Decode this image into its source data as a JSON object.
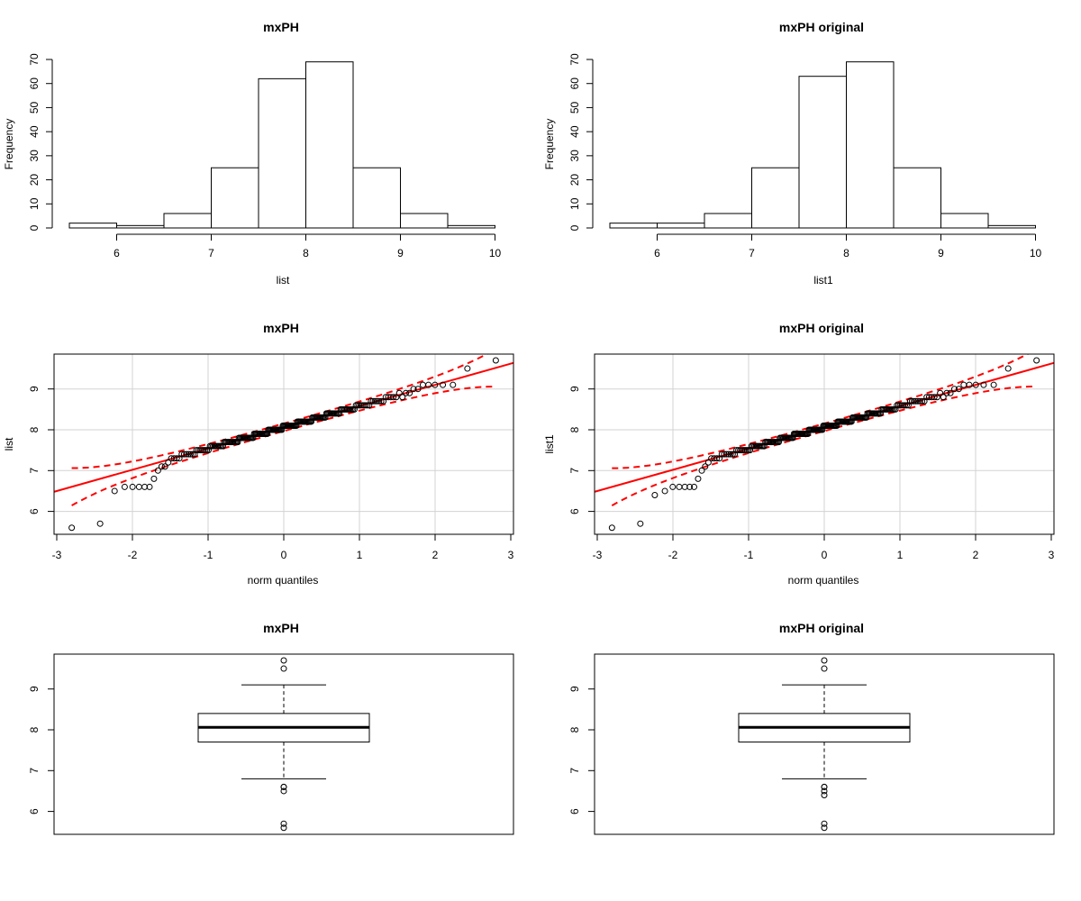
{
  "colors": {
    "fit_line": "#ff0000",
    "grid": "#d3d3d3",
    "axis": "#000000"
  },
  "chart_data": [
    {
      "type": "bar",
      "subtype": "histogram",
      "title": "mxPH",
      "xlabel": "list",
      "ylabel": "Frequency",
      "bin_edges": [
        5.5,
        6,
        6.5,
        7,
        7.5,
        8,
        8.5,
        9,
        9.5,
        10
      ],
      "values": [
        2,
        1,
        6,
        25,
        62,
        69,
        25,
        6,
        1
      ],
      "xticks": [
        6,
        7,
        8,
        9,
        10
      ],
      "yticks": [
        0,
        10,
        20,
        30,
        40,
        50,
        60,
        70
      ],
      "xlim": [
        5.5,
        10
      ],
      "ylim": [
        0,
        70
      ]
    },
    {
      "type": "bar",
      "subtype": "histogram",
      "title": "mxPH original",
      "xlabel": "list1",
      "ylabel": "Frequency",
      "bin_edges": [
        5.5,
        6,
        6.5,
        7,
        7.5,
        8,
        8.5,
        9,
        9.5,
        10
      ],
      "values": [
        2,
        2,
        6,
        25,
        63,
        69,
        25,
        6,
        1
      ],
      "xticks": [
        6,
        7,
        8,
        9,
        10
      ],
      "yticks": [
        0,
        10,
        20,
        30,
        40,
        50,
        60,
        70
      ],
      "xlim": [
        5.5,
        10
      ],
      "ylim": [
        0,
        70
      ]
    },
    {
      "type": "scatter",
      "subtype": "qq-plot",
      "title": "mxPH",
      "xlabel": "norm quantiles",
      "ylabel": "list",
      "xticks": [
        -3,
        -2,
        -1,
        0,
        1,
        2,
        3
      ],
      "yticks": [
        6,
        7,
        8,
        9
      ],
      "xlim": [
        -3,
        3
      ],
      "ylim": [
        5.5,
        9.8
      ],
      "grid": true,
      "reference_line": {
        "intercept": 8.06,
        "slope": 0.52
      },
      "envelope": true,
      "points_n": 197,
      "low_tail": [
        5.6,
        5.7,
        6.5,
        6.6,
        6.6,
        6.6,
        6.6,
        6.6,
        6.8,
        7.0,
        7.1,
        7.1,
        7.2
      ],
      "high_tail": [
        8.8,
        8.9,
        8.9,
        9.0,
        9.0,
        9.1,
        9.1,
        9.1,
        9.1,
        9.1,
        9.5,
        9.7
      ]
    },
    {
      "type": "scatter",
      "subtype": "qq-plot",
      "title": "mxPH original",
      "xlabel": "norm quantiles",
      "ylabel": "list1",
      "xticks": [
        -3,
        -2,
        -1,
        0,
        1,
        2,
        3
      ],
      "yticks": [
        6,
        7,
        8,
        9
      ],
      "xlim": [
        -3,
        3
      ],
      "ylim": [
        5.5,
        9.8
      ],
      "grid": true,
      "reference_line": {
        "intercept": 8.06,
        "slope": 0.52
      },
      "envelope": true,
      "points_n": 199,
      "low_tail": [
        5.6,
        5.7,
        6.4,
        6.5,
        6.6,
        6.6,
        6.6,
        6.6,
        6.6,
        6.8,
        7.0,
        7.1,
        7.2
      ],
      "high_tail": [
        8.8,
        8.9,
        8.9,
        9.0,
        9.0,
        9.1,
        9.1,
        9.1,
        9.1,
        9.1,
        9.5,
        9.7
      ]
    },
    {
      "type": "box",
      "title": "mxPH",
      "yticks": [
        6,
        7,
        8,
        9
      ],
      "ylim": [
        5.5,
        9.8
      ],
      "q1": 7.7,
      "median": 8.06,
      "q3": 8.4,
      "whisker_low": 6.8,
      "whisker_high": 9.1,
      "outliers": [
        9.7,
        9.5,
        6.6,
        6.6,
        6.5,
        5.7,
        5.6
      ]
    },
    {
      "type": "box",
      "title": "mxPH original",
      "yticks": [
        6,
        7,
        8,
        9
      ],
      "ylim": [
        5.5,
        9.8
      ],
      "q1": 7.7,
      "median": 8.06,
      "q3": 8.4,
      "whisker_low": 6.8,
      "whisker_high": 9.1,
      "outliers": [
        9.7,
        9.5,
        6.6,
        6.6,
        6.5,
        6.4,
        5.7,
        5.6
      ]
    }
  ]
}
